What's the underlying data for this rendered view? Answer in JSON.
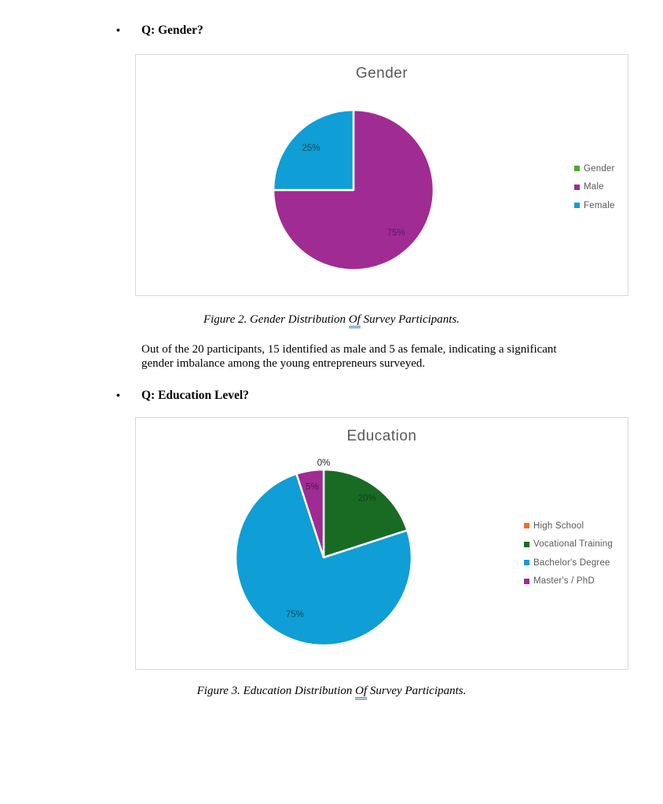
{
  "sections": [
    {
      "question": "Q: Gender?",
      "caption": {
        "prefix": "Figure 2. Gender Distribution ",
        "underlined": "Of",
        "suffix": " Survey Participants."
      },
      "body": "Out of the 20 participants, 15 identified as male and 5 as female, indicating a significant gender imbalance among the young entrepreneurs surveyed."
    },
    {
      "question": "Q: Education Level?",
      "caption": {
        "prefix": "Figure 3. Education Distribution ",
        "underlined": "Of",
        "suffix": " Survey Participants."
      }
    }
  ],
  "chart_data": [
    {
      "type": "pie",
      "title": "Gender",
      "categories": [
        "Male",
        "Female"
      ],
      "values": [
        75,
        25
      ],
      "labels": [
        "75%",
        "25%"
      ],
      "unit": "percent",
      "colors": [
        "#a02b93",
        "#0f9ed5"
      ],
      "label_colors": [
        "#5e1b57",
        "#17495e"
      ],
      "label_r": [
        0.75,
        0.75
      ],
      "start_angle": 0,
      "direction": "clockwise",
      "legend_position": "right",
      "legend": [
        {
          "label": "Gender",
          "color": "#4ea72e"
        },
        {
          "label": "Male",
          "color": "#a02b93"
        },
        {
          "label": "Female",
          "color": "#0f9ed5"
        }
      ]
    },
    {
      "type": "pie",
      "title": "Education",
      "categories": [
        "High School",
        "Vocational Training",
        "Bachelor's Degree",
        "Master's / PhD"
      ],
      "values": [
        0,
        20,
        75,
        5
      ],
      "labels": [
        "0%",
        "20%",
        "75%",
        "5%"
      ],
      "unit": "percent",
      "colors": [
        "#e97132",
        "#196b24",
        "#0f9ed5",
        "#a02b93"
      ],
      "label_colors": [
        "#262626",
        "#11401a",
        "#17495e",
        "#4a1a55"
      ],
      "label_r": [
        1.08,
        0.84,
        0.72,
        0.82
      ],
      "start_angle": 0,
      "direction": "clockwise",
      "legend_position": "right",
      "legend": [
        {
          "label": "High School",
          "color": "#e97132"
        },
        {
          "label": "Vocational Training",
          "color": "#196b24"
        },
        {
          "label": "Bachelor's Degree",
          "color": "#0f9ed5"
        },
        {
          "label": "Master's / PhD",
          "color": "#a02b93"
        }
      ]
    }
  ]
}
